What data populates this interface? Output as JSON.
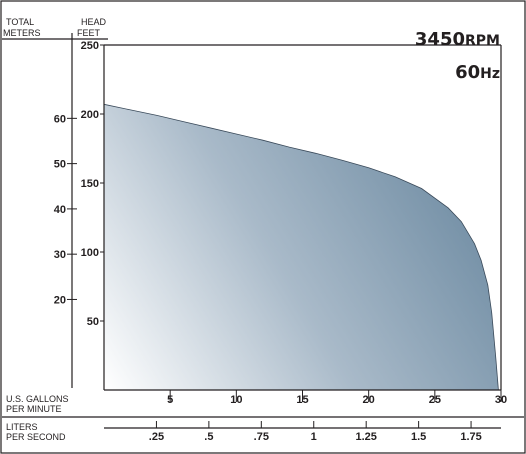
{
  "chart_data": {
    "type": "area",
    "rpm": {
      "value": "3450",
      "unit": "RPM"
    },
    "hz": {
      "value": "60",
      "unit": "Hz"
    },
    "head_axis": {
      "header_line1": "HEAD",
      "header_line2": "FEET",
      "range": [
        0,
        250
      ],
      "ticks": [
        50,
        100,
        150,
        200,
        250
      ]
    },
    "meters_axis": {
      "header_line1": "TOTAL",
      "header_line2": "METERS",
      "ticks": [
        20,
        30,
        40,
        50,
        60
      ]
    },
    "gpm_axis": {
      "label_line1": "U.S. GALLONS",
      "label_line2": "PER MINUTE",
      "range": [
        0,
        30
      ],
      "ticks": [
        5,
        10,
        15,
        20,
        25,
        30
      ]
    },
    "lps_axis": {
      "label_line1": "LITERS",
      "label_line2": "PER SECOND",
      "ticks": [
        0.25,
        0.5,
        0.75,
        1,
        1.25,
        1.5,
        1.75
      ],
      "tick_labels": [
        ".25",
        ".5",
        ".75",
        "1",
        "1.25",
        "1.5",
        "1.75"
      ]
    },
    "series": [
      {
        "x": [
          0,
          2,
          4,
          6,
          8,
          10,
          12,
          14,
          16,
          18,
          20,
          22,
          24,
          26,
          27,
          28,
          28.5,
          29,
          29.3,
          29.6,
          29.8
        ],
        "y": [
          207,
          203,
          199,
          194.5,
          190,
          185.5,
          181,
          176,
          171.5,
          166.5,
          161,
          154.5,
          146,
          132,
          122,
          106,
          94,
          76,
          56,
          24,
          0
        ]
      }
    ]
  }
}
